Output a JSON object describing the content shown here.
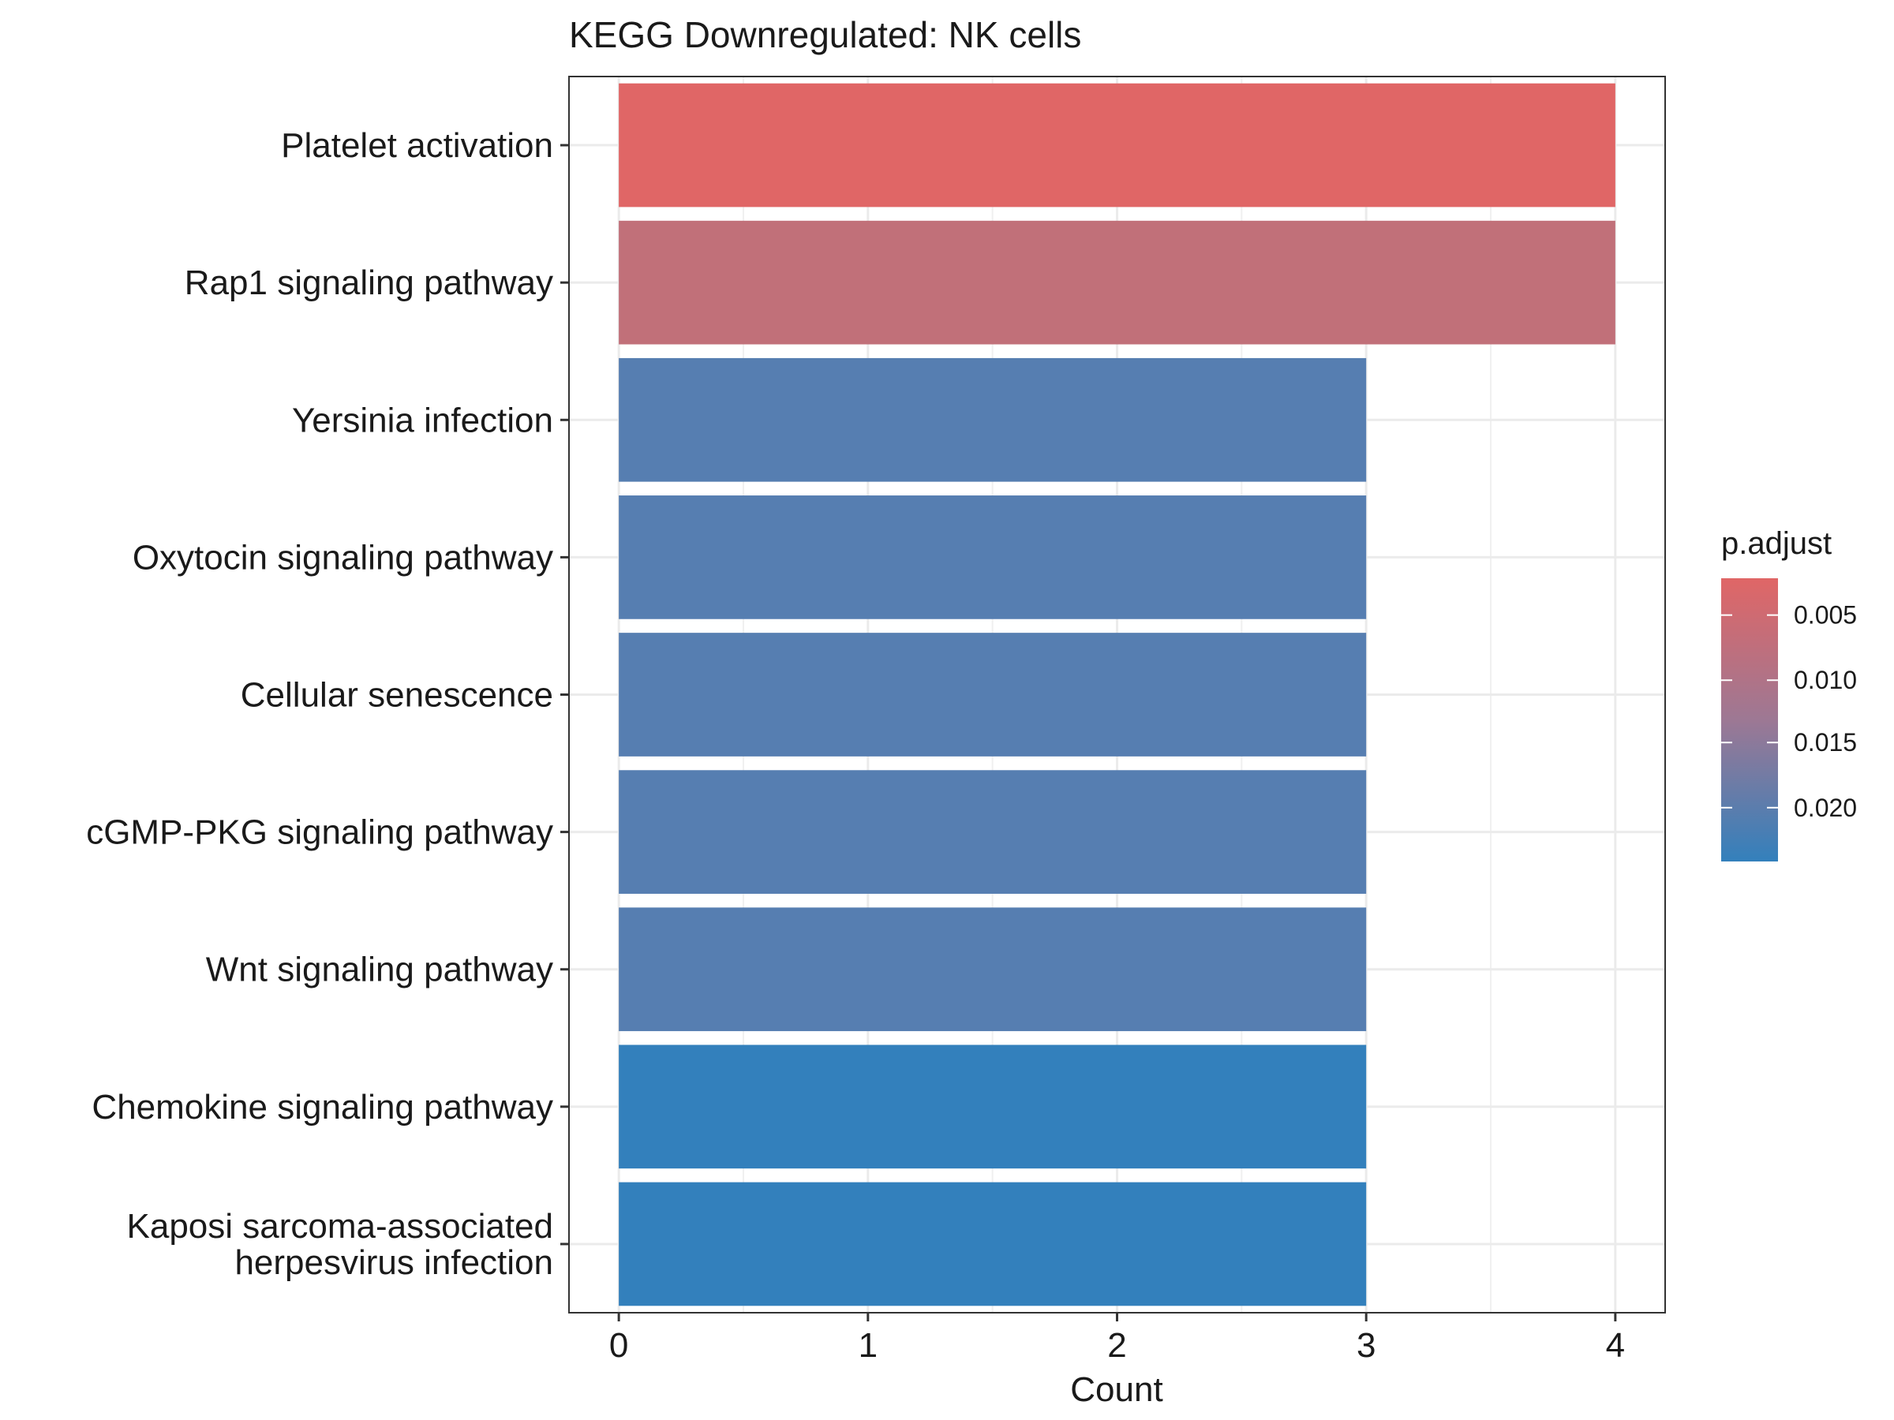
{
  "chart_data": {
    "type": "bar",
    "orientation": "horizontal",
    "title": "KEGG Downregulated: NK cells",
    "xlabel": "Count",
    "ylabel": "",
    "xlim": [
      -0.2,
      4.2
    ],
    "xticks": [
      0,
      1,
      2,
      3,
      4
    ],
    "grid": true,
    "categories": [
      "Platelet activation",
      "Rap1 signaling pathway",
      "Yersinia infection",
      "Oxytocin signaling pathway",
      "Cellular senescence",
      "cGMP-PKG signaling pathway",
      "Wnt signaling pathway",
      "Chemokine signaling pathway",
      "Kaposi sarcoma-associated\nherpesvirus infection"
    ],
    "values": [
      4,
      4,
      3,
      3,
      3,
      3,
      3,
      3,
      3
    ],
    "colors": [
      "#e06666",
      "#c17079",
      "#567eb1",
      "#567eb1",
      "#567eb1",
      "#567eb1",
      "#567eb1",
      "#3380bc",
      "#3380bc"
    ],
    "legend": {
      "title": "p.adjust",
      "placement": "right",
      "ticks": [
        "0.005",
        "0.010",
        "0.015",
        "0.020"
      ],
      "gradient_top": "#e06666",
      "gradient_bottom": "#3380bc"
    }
  }
}
